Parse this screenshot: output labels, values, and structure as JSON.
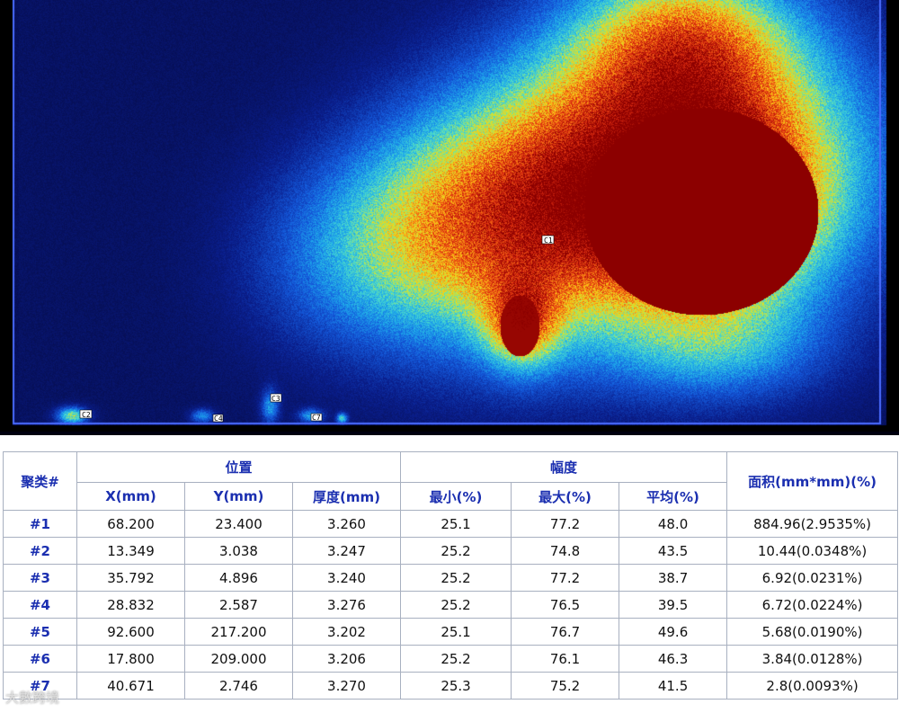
{
  "scan": {
    "markers": [
      "C1",
      "C2",
      "C3",
      "C4",
      "C7"
    ]
  },
  "table": {
    "group_headers": {
      "cluster": "聚类#",
      "position": "位置",
      "amplitude": "幅度",
      "area": "面积(mm*mm)(%)"
    },
    "columns": [
      "X(mm)",
      "Y(mm)",
      "厚度(mm)",
      "最小(%)",
      "最大(%)",
      "平均(%)"
    ],
    "rows": [
      {
        "id": "#1",
        "x": "68.200",
        "y": "23.400",
        "thickness": "3.260",
        "min": "25.1",
        "max": "77.2",
        "avg": "48.0",
        "area": "884.96(2.9535%)"
      },
      {
        "id": "#2",
        "x": "13.349",
        "y": "3.038",
        "thickness": "3.247",
        "min": "25.2",
        "max": "74.8",
        "avg": "43.5",
        "area": "10.44(0.0348%)"
      },
      {
        "id": "#3",
        "x": "35.792",
        "y": "4.896",
        "thickness": "3.240",
        "min": "25.2",
        "max": "77.2",
        "avg": "38.7",
        "area": "6.92(0.0231%)"
      },
      {
        "id": "#4",
        "x": "28.832",
        "y": "2.587",
        "thickness": "3.276",
        "min": "25.2",
        "max": "76.5",
        "avg": "39.5",
        "area": "6.72(0.0224%)"
      },
      {
        "id": "#5",
        "x": "92.600",
        "y": "217.200",
        "thickness": "3.202",
        "min": "25.1",
        "max": "76.7",
        "avg": "49.6",
        "area": "5.68(0.0190%)"
      },
      {
        "id": "#6",
        "x": "17.800",
        "y": "209.000",
        "thickness": "3.206",
        "min": "25.2",
        "max": "76.1",
        "avg": "46.3",
        "area": "3.84(0.0128%)"
      },
      {
        "id": "#7",
        "x": "40.671",
        "y": "2.746",
        "thickness": "3.270",
        "min": "25.3",
        "max": "75.2",
        "avg": "41.5",
        "area": "2.8(0.0093%)"
      }
    ]
  },
  "watermark": "大數跨境",
  "colors": {
    "background": "#00003a",
    "defect_core": "#8b0000",
    "header_text": "#1b2fb0"
  }
}
